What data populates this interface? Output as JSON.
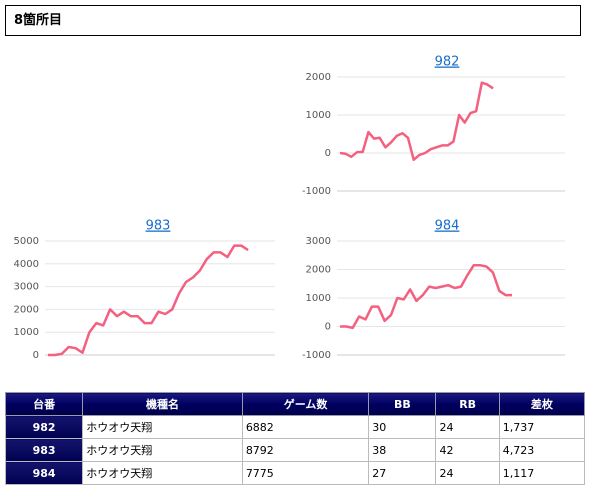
{
  "header": {
    "title": "8箇所目"
  },
  "chart_data": [
    {
      "type": "line",
      "title": "982",
      "color": "#f4607f",
      "grid": true,
      "ylim": [
        -1000,
        2000
      ],
      "yticks": [
        -1000,
        0,
        1000,
        2000
      ],
      "values": [
        0,
        -20,
        -100,
        20,
        30,
        550,
        380,
        400,
        150,
        280,
        450,
        520,
        400,
        -180,
        -50,
        0,
        100,
        150,
        200,
        200,
        300,
        1000,
        800,
        1050,
        1100,
        1850,
        1800,
        1700
      ]
    },
    {
      "type": "line",
      "title": "983",
      "color": "#f4607f",
      "grid": true,
      "ylim": [
        0,
        5000
      ],
      "yticks": [
        0,
        1000,
        2000,
        3000,
        4000,
        5000
      ],
      "values": [
        0,
        0,
        50,
        350,
        300,
        100,
        1000,
        1400,
        1300,
        2000,
        1700,
        1900,
        1700,
        1700,
        1400,
        1400,
        1900,
        1800,
        2000,
        2700,
        3200,
        3400,
        3700,
        4200,
        4500,
        4500,
        4300,
        4800,
        4800,
        4600
      ]
    },
    {
      "type": "line",
      "title": "984",
      "color": "#f4607f",
      "grid": true,
      "ylim": [
        -1000,
        3000
      ],
      "yticks": [
        -1000,
        0,
        1000,
        2000,
        3000
      ],
      "values": [
        0,
        0,
        -50,
        350,
        250,
        700,
        700,
        200,
        400,
        1000,
        950,
        1300,
        900,
        1100,
        1400,
        1350,
        1400,
        1450,
        1350,
        1400,
        1800,
        2150,
        2150,
        2100,
        1900,
        1250,
        1100,
        1100
      ]
    }
  ],
  "table": {
    "columns": [
      "台番",
      "機種名",
      "ゲーム数",
      "BB",
      "RB",
      "差枚"
    ],
    "rows": [
      [
        "982",
        "ホウオウ天翔",
        "6882",
        "30",
        "24",
        "1,737"
      ],
      [
        "983",
        "ホウオウ天翔",
        "8792",
        "38",
        "42",
        "4,723"
      ],
      [
        "984",
        "ホウオウ天翔",
        "7775",
        "27",
        "24",
        "1,117"
      ]
    ]
  }
}
